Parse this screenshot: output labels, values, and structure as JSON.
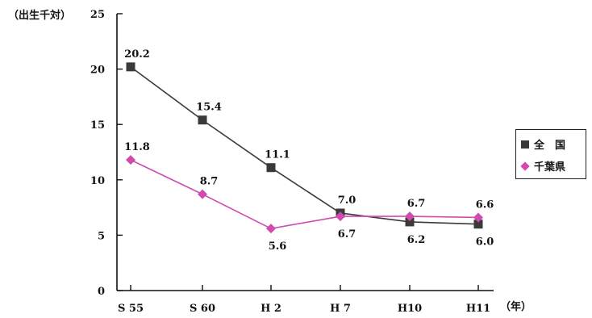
{
  "chart_data": {
    "type": "line",
    "ylabel": "（出生千対）",
    "x_unit": "（年）",
    "categories": [
      "S 55",
      "S 60",
      "H 2",
      "H 7",
      "H10",
      "H11"
    ],
    "ylim": [
      0,
      25
    ],
    "yticks": [
      0,
      5,
      10,
      15,
      20,
      25
    ],
    "grid": false,
    "legend_position": "right",
    "series": [
      {
        "name": "全　国",
        "marker": "square",
        "color": "#3a3a3a",
        "values": [
          20.2,
          15.4,
          11.1,
          7.0,
          6.2,
          6.0
        ],
        "labels": [
          "20.2",
          "15.4",
          "11.1",
          "7.0",
          "6.2",
          "6.0"
        ]
      },
      {
        "name": "千葉県",
        "marker": "diamond",
        "color": "#d04ab0",
        "values": [
          11.8,
          8.7,
          5.6,
          6.7,
          6.7,
          6.6
        ],
        "labels": [
          "11.8",
          "8.7",
          "5.6",
          "6.7",
          "6.7",
          "6.6"
        ]
      }
    ]
  }
}
